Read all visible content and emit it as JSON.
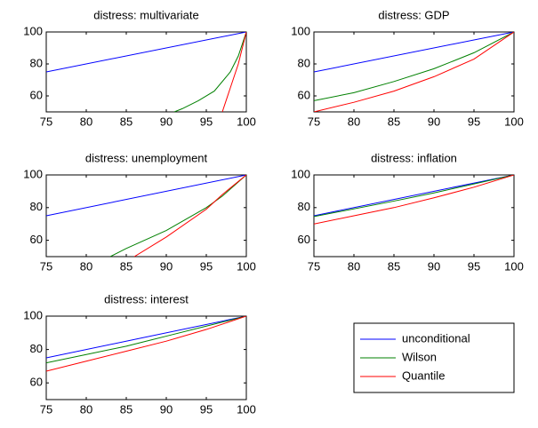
{
  "chart_data": [
    {
      "type": "line",
      "title": "distress: multivariate",
      "xlim": [
        75,
        100
      ],
      "ylim": [
        50,
        100
      ],
      "xticks": [
        75,
        80,
        85,
        90,
        95,
        100
      ],
      "yticks": [
        60,
        80,
        100
      ],
      "series": [
        {
          "name": "unconditional",
          "color": "#0000ff",
          "x": [
            75,
            100
          ],
          "values": [
            75,
            100
          ]
        },
        {
          "name": "Wilson",
          "color": "#008000",
          "x": [
            91,
            92,
            94,
            96,
            98,
            99,
            100
          ],
          "values": [
            50,
            52,
            57,
            63,
            75,
            85,
            100
          ]
        },
        {
          "name": "Quantile",
          "color": "#ff0000",
          "x": [
            97,
            98,
            99,
            100
          ],
          "values": [
            50,
            65,
            80,
            100
          ]
        }
      ]
    },
    {
      "type": "line",
      "title": "distress: GDP",
      "xlim": [
        75,
        100
      ],
      "ylim": [
        50,
        100
      ],
      "xticks": [
        75,
        80,
        85,
        90,
        95,
        100
      ],
      "yticks": [
        60,
        80,
        100
      ],
      "series": [
        {
          "name": "unconditional",
          "color": "#0000ff",
          "x": [
            75,
            100
          ],
          "values": [
            75,
            100
          ]
        },
        {
          "name": "Wilson",
          "color": "#008000",
          "x": [
            75,
            80,
            85,
            90,
            95,
            100
          ],
          "values": [
            57,
            62,
            69,
            77,
            87,
            100
          ]
        },
        {
          "name": "Quantile",
          "color": "#ff0000",
          "x": [
            75,
            80,
            85,
            90,
            95,
            100
          ],
          "values": [
            50,
            56,
            63,
            72,
            83,
            100
          ]
        }
      ]
    },
    {
      "type": "line",
      "title": "distress: unemployment",
      "xlim": [
        75,
        100
      ],
      "ylim": [
        50,
        100
      ],
      "xticks": [
        75,
        80,
        85,
        90,
        95,
        100
      ],
      "yticks": [
        60,
        80,
        100
      ],
      "series": [
        {
          "name": "unconditional",
          "color": "#0000ff",
          "x": [
            75,
            100
          ],
          "values": [
            75,
            100
          ]
        },
        {
          "name": "Wilson",
          "color": "#008000",
          "x": [
            83,
            85,
            90,
            95,
            97,
            100
          ],
          "values": [
            50,
            55,
            66,
            80,
            87,
            100
          ]
        },
        {
          "name": "Quantile",
          "color": "#ff0000",
          "x": [
            86,
            90,
            95,
            97,
            100
          ],
          "values": [
            50,
            62,
            79,
            88,
            100
          ]
        }
      ]
    },
    {
      "type": "line",
      "title": "distress: inflation",
      "xlim": [
        75,
        100
      ],
      "ylim": [
        50,
        100
      ],
      "xticks": [
        75,
        80,
        85,
        90,
        95,
        100
      ],
      "yticks": [
        60,
        80,
        100
      ],
      "series": [
        {
          "name": "unconditional",
          "color": "#0000ff",
          "x": [
            75,
            100
          ],
          "values": [
            75,
            100
          ]
        },
        {
          "name": "Wilson",
          "color": "#008000",
          "x": [
            75,
            85,
            90,
            95,
            100
          ],
          "values": [
            74.5,
            84,
            89,
            94.5,
            100
          ]
        },
        {
          "name": "Quantile",
          "color": "#ff0000",
          "x": [
            75,
            80,
            85,
            90,
            95,
            100
          ],
          "values": [
            70,
            75,
            80,
            86,
            92.5,
            100
          ]
        }
      ]
    },
    {
      "type": "line",
      "title": "distress: interest",
      "xlim": [
        75,
        100
      ],
      "ylim": [
        50,
        100
      ],
      "xticks": [
        75,
        80,
        85,
        90,
        95,
        100
      ],
      "yticks": [
        60,
        80,
        100
      ],
      "series": [
        {
          "name": "unconditional",
          "color": "#0000ff",
          "x": [
            75,
            100
          ],
          "values": [
            75,
            100
          ]
        },
        {
          "name": "Wilson",
          "color": "#008000",
          "x": [
            75,
            80,
            85,
            90,
            95,
            100
          ],
          "values": [
            72,
            77,
            82,
            88,
            94,
            100
          ]
        },
        {
          "name": "Quantile",
          "color": "#ff0000",
          "x": [
            75,
            80,
            85,
            90,
            95,
            100
          ],
          "values": [
            67,
            73,
            79,
            85,
            92,
            100
          ]
        }
      ]
    }
  ]
}
